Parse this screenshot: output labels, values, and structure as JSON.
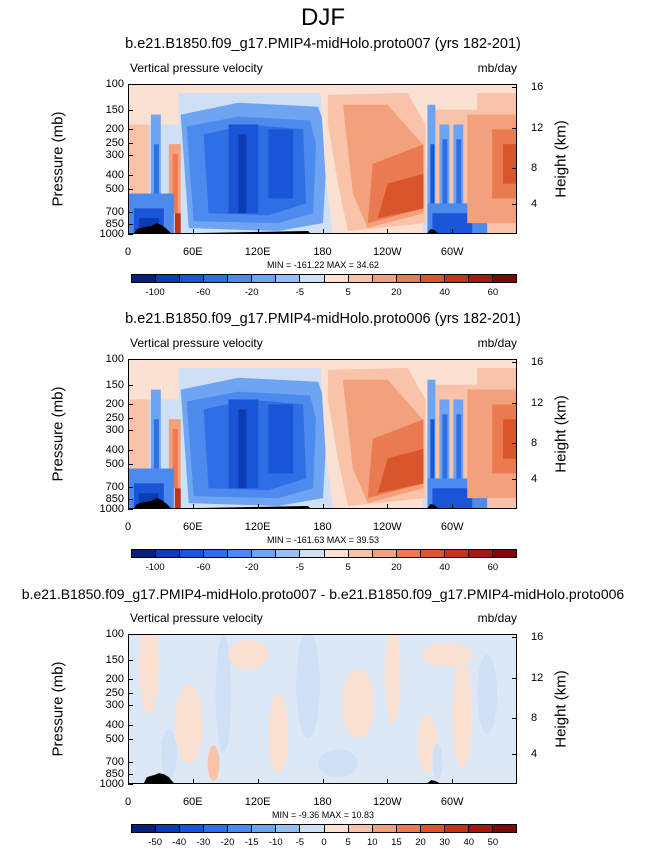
{
  "page_title": "DJF",
  "colors": {
    "neg": [
      "#07217a",
      "#0b3cb4",
      "#1a55d7",
      "#2f6fe6",
      "#4d8aee",
      "#6ea4f2",
      "#96c0f4",
      "#cfe0f5"
    ],
    "pos": [
      "#fbe1d2",
      "#f8c3a8",
      "#f3a07c",
      "#ea7a4f",
      "#d9552b",
      "#c2351a",
      "#a1190f",
      "#7b0a08"
    ]
  },
  "chart_data": [
    {
      "type": "heatmap",
      "title": "b.e21.B1850.f09_g17.PMIP4-midHolo.proto007 (yrs 182-201)",
      "variable": "Vertical pressure velocity",
      "units": "mb/day",
      "ylabel": "Pressure (mb)",
      "ylabel_right": "Height (km)",
      "yticks": [
        "100",
        "150",
        "200",
        "250",
        "300",
        "400",
        "500",
        "700",
        "850",
        "1000"
      ],
      "yticks_right": [
        "16",
        "12",
        "8",
        "4"
      ],
      "xticks": [
        "0",
        "60E",
        "120E",
        "180",
        "120W",
        "60W"
      ],
      "stats": "MIN = -161.22   MAX =  34.62",
      "colorbar_labels": [
        "-100",
        "-60",
        "-20",
        "-5",
        "5",
        "20",
        "40",
        "60"
      ],
      "min": -161.22,
      "max": 34.62
    },
    {
      "type": "heatmap",
      "title": "b.e21.B1850.f09_g17.PMIP4-midHolo.proto006 (yrs 182-201)",
      "variable": "Vertical pressure velocity",
      "units": "mb/day",
      "ylabel": "Pressure (mb)",
      "ylabel_right": "Height (km)",
      "yticks": [
        "100",
        "150",
        "200",
        "250",
        "300",
        "400",
        "500",
        "700",
        "850",
        "1000"
      ],
      "yticks_right": [
        "16",
        "12",
        "8",
        "4"
      ],
      "xticks": [
        "0",
        "60E",
        "120E",
        "180",
        "120W",
        "60W"
      ],
      "stats": "MIN = -161.63   MAX =  39.53",
      "colorbar_labels": [
        "-100",
        "-60",
        "-20",
        "-5",
        "5",
        "20",
        "40",
        "60"
      ],
      "min": -161.63,
      "max": 39.53
    },
    {
      "type": "heatmap",
      "title": "b.e21.B1850.f09_g17.PMIP4-midHolo.proto007 - b.e21.B1850.f09_g17.PMIP4-midHolo.proto006",
      "variable": "Vertical pressure velocity",
      "units": "mb/day",
      "ylabel": "Pressure (mb)",
      "ylabel_right": "Height (km)",
      "yticks": [
        "100",
        "150",
        "200",
        "250",
        "300",
        "400",
        "500",
        "700",
        "850",
        "1000"
      ],
      "yticks_right": [
        "16",
        "12",
        "8",
        "4"
      ],
      "xticks": [
        "0",
        "60E",
        "120E",
        "180",
        "120W",
        "60W"
      ],
      "stats": "MIN =  -9.36   MAX =  10.83",
      "colorbar_labels": [
        "-50",
        "-40",
        "-30",
        "-20",
        "-15",
        "-10",
        "-5",
        "0",
        "5",
        "10",
        "15",
        "20",
        "30",
        "40",
        "50"
      ],
      "min": -9.36,
      "max": 10.83
    }
  ]
}
